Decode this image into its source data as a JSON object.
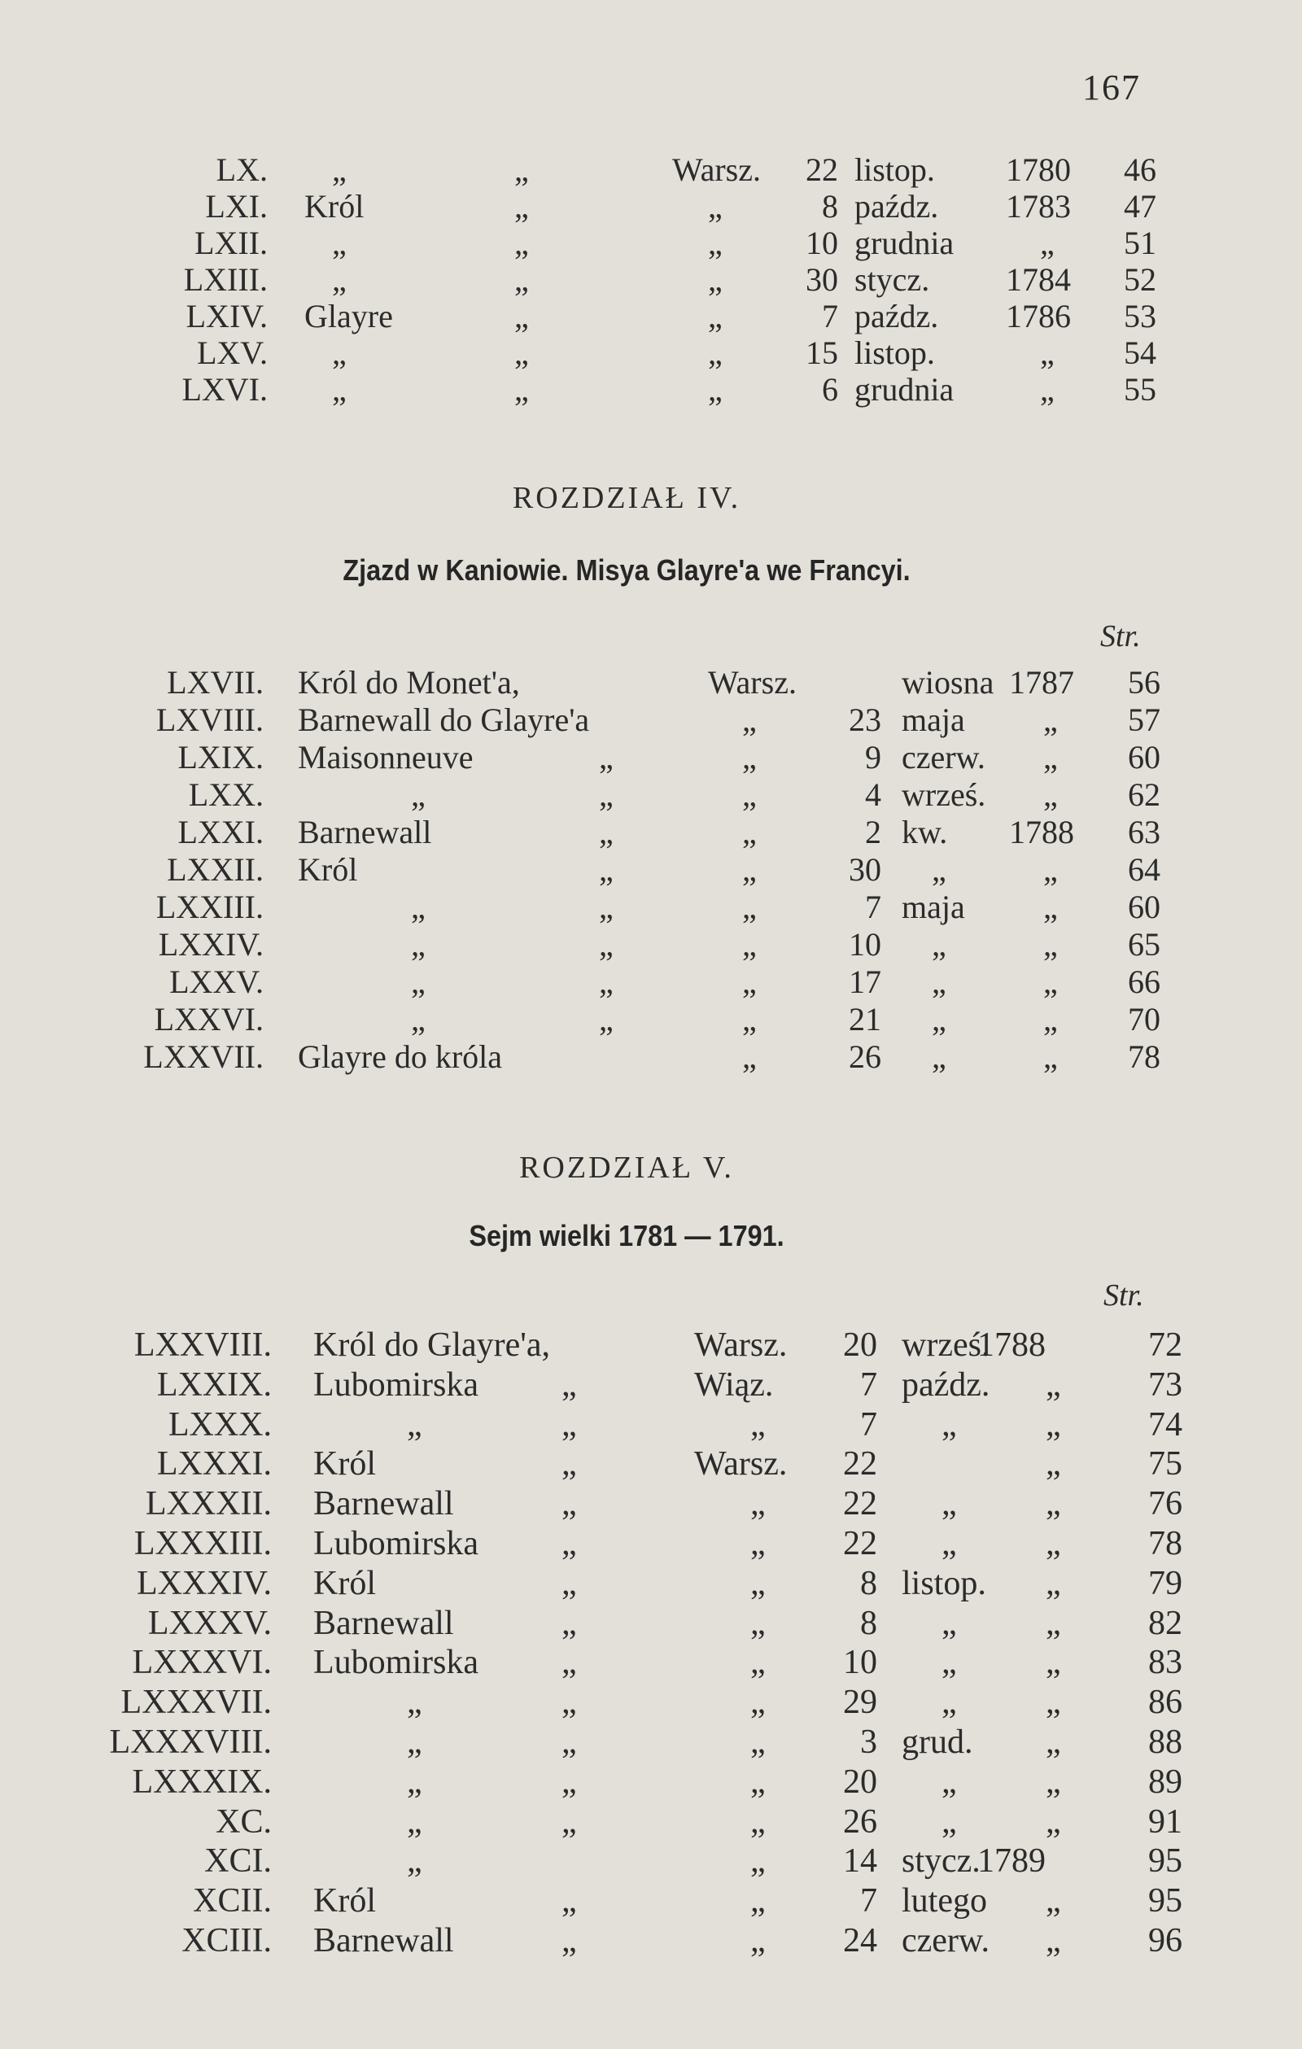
{
  "page_number": "167",
  "sections": [
    {
      "heading": "",
      "subtitle": "",
      "str_label": "",
      "rows": [
        {
          "num": "LX.",
          "name": "„",
          "c3": "„",
          "place": "Warsz.",
          "day": "22",
          "month": "listop.",
          "year": "1780",
          "page": "46"
        },
        {
          "num": "LXI.",
          "name": "Król",
          "c3": "„",
          "place": "„",
          "day": "8",
          "month": "paźdz.",
          "year": "1783",
          "page": "47"
        },
        {
          "num": "LXII.",
          "name": "„",
          "c3": "„",
          "place": "„",
          "day": "10",
          "month": "grudnia",
          "year": "„",
          "page": "51"
        },
        {
          "num": "LXIII.",
          "name": "„",
          "c3": "„",
          "place": "„",
          "day": "30",
          "month": "stycz.",
          "year": "1784",
          "page": "52"
        },
        {
          "num": "LXIV.",
          "name": "Glayre",
          "c3": "„",
          "place": "„",
          "day": "7",
          "month": "paźdz.",
          "year": "1786",
          "page": "53"
        },
        {
          "num": "LXV.",
          "name": "„",
          "c3": "„",
          "place": "„",
          "day": "15",
          "month": "listop.",
          "year": "„",
          "page": "54"
        },
        {
          "num": "LXVI.",
          "name": "„",
          "c3": "„",
          "place": "„",
          "day": "6",
          "month": "grudnia",
          "year": "„",
          "page": "55"
        }
      ]
    },
    {
      "heading": "ROZDZIAŁ IV.",
      "subtitle": "Zjazd w Kaniowie.  Misya Glayre'a we Francyi.",
      "str_label": "Str.",
      "rows": [
        {
          "num": "LXVII.",
          "name": "Król do Monet'a,",
          "c3": "",
          "place": "Warsz.",
          "day": "",
          "month": "wiosna",
          "year": "1787",
          "page": "56"
        },
        {
          "num": "LXVIII.",
          "name": "Barnewall do Glayre'a",
          "c3": "",
          "place": "„",
          "day": "23",
          "month": "maja",
          "year": "„",
          "page": "57"
        },
        {
          "num": "LXIX.",
          "name": "Maisonneuve",
          "c3": "„",
          "place": "„",
          "day": "9",
          "month": "czerw.",
          "year": "„",
          "page": "60"
        },
        {
          "num": "LXX.",
          "name": "„",
          "c3": "„",
          "place": "„",
          "day": "4",
          "month": "wrześ.",
          "year": "„",
          "page": "62"
        },
        {
          "num": "LXXI.",
          "name": "Barnewall",
          "c3": "„",
          "place": "„",
          "day": "2",
          "month": "kw.",
          "year": "1788",
          "page": "63"
        },
        {
          "num": "LXXII.",
          "name": "Król",
          "c3": "„",
          "place": "„",
          "day": "30",
          "month": "„",
          "year": "„",
          "page": "64"
        },
        {
          "num": "LXXIII.",
          "name": "„",
          "c3": "„",
          "place": "„",
          "day": "7",
          "month": "maja",
          "year": "„",
          "page": "60"
        },
        {
          "num": "LXXIV.",
          "name": "„",
          "c3": "„",
          "place": "„",
          "day": "10",
          "month": "„",
          "year": "„",
          "page": "65"
        },
        {
          "num": "LXXV.",
          "name": "„",
          "c3": "„",
          "place": "„",
          "day": "17",
          "month": "„",
          "year": "„",
          "page": "66"
        },
        {
          "num": "LXXVI.",
          "name": "„",
          "c3": "„",
          "place": "„",
          "day": "21",
          "month": "„",
          "year": "„",
          "page": "70"
        },
        {
          "num": "LXXVII.",
          "name": "Glayre  do  króla",
          "c3": "",
          "place": "„",
          "day": "26",
          "month": "„",
          "year": "„",
          "page": "78"
        }
      ]
    },
    {
      "heading": "ROZDZIAŁ V.",
      "subtitle": "Sejm wielki 1781 — 1791.",
      "str_label": "Str.",
      "rows": [
        {
          "num": "LXXVIII.",
          "name": "Król  do  Glayre'a,",
          "c3": "",
          "place": "Warsz.",
          "day": "20",
          "month": "wrześ.",
          "year": "1788",
          "page": "72"
        },
        {
          "num": "LXXIX.",
          "name": "Lubomirska",
          "c3": "„",
          "place": "Wiąz.",
          "day": "7",
          "month": "paźdz.",
          "year": "„",
          "page": "73"
        },
        {
          "num": "LXXX.",
          "name": "„",
          "c3": "„",
          "place": "„",
          "day": "7",
          "month": "„",
          "year": "„",
          "page": "74"
        },
        {
          "num": "LXXXI.",
          "name": "Król",
          "c3": "„",
          "place": "Warsz.",
          "day": "22",
          "month": "",
          "year": "„",
          "page": "75"
        },
        {
          "num": "LXXXII.",
          "name": "Barnewall",
          "c3": "„",
          "place": "„",
          "day": "22",
          "month": "„",
          "year": "„",
          "page": "76"
        },
        {
          "num": "LXXXIII.",
          "name": "Lubomirska",
          "c3": "„",
          "place": "„",
          "day": "22",
          "month": "„",
          "year": "„",
          "page": "78"
        },
        {
          "num": "LXXXIV.",
          "name": "Król",
          "c3": "„",
          "place": "„",
          "day": "8",
          "month": "listop.",
          "year": "„",
          "page": "79"
        },
        {
          "num": "LXXXV.",
          "name": "Barnewall",
          "c3": "„",
          "place": "„",
          "day": "8",
          "month": "„",
          "year": "„",
          "page": "82"
        },
        {
          "num": "LXXXVI.",
          "name": "Lubomirska",
          "c3": "„",
          "place": "„",
          "day": "10",
          "month": "„",
          "year": "„",
          "page": "83"
        },
        {
          "num": "LXXXVII.",
          "name": "„",
          "c3": "„",
          "place": "„",
          "day": "29",
          "month": "„",
          "year": "„",
          "page": "86"
        },
        {
          "num": "LXXXVIII.",
          "name": "„",
          "c3": "„",
          "place": "„",
          "day": "3",
          "month": "grud.",
          "year": "„",
          "page": "88"
        },
        {
          "num": "LXXXIX.",
          "name": "„",
          "c3": "„",
          "place": "„",
          "day": "20",
          "month": "„",
          "year": "„",
          "page": "89"
        },
        {
          "num": "XC.",
          "name": "„",
          "c3": "„",
          "place": "„",
          "day": "26",
          "month": "„",
          "year": "„",
          "page": "91"
        },
        {
          "num": "XCI.",
          "name": "„",
          "c3": "",
          "place": "„",
          "day": "14",
          "month": "stycz.",
          "year": "1789",
          "page": "95"
        },
        {
          "num": "XCII.",
          "name": "Król",
          "c3": "„",
          "place": "„",
          "day": "7",
          "month": "lutego",
          "year": "„",
          "page": "95"
        },
        {
          "num": "XCIII.",
          "name": "Barnewall",
          "c3": "„",
          "place": "„",
          "day": "24",
          "month": "czerw.",
          "year": "„",
          "page": "96"
        }
      ]
    }
  ]
}
